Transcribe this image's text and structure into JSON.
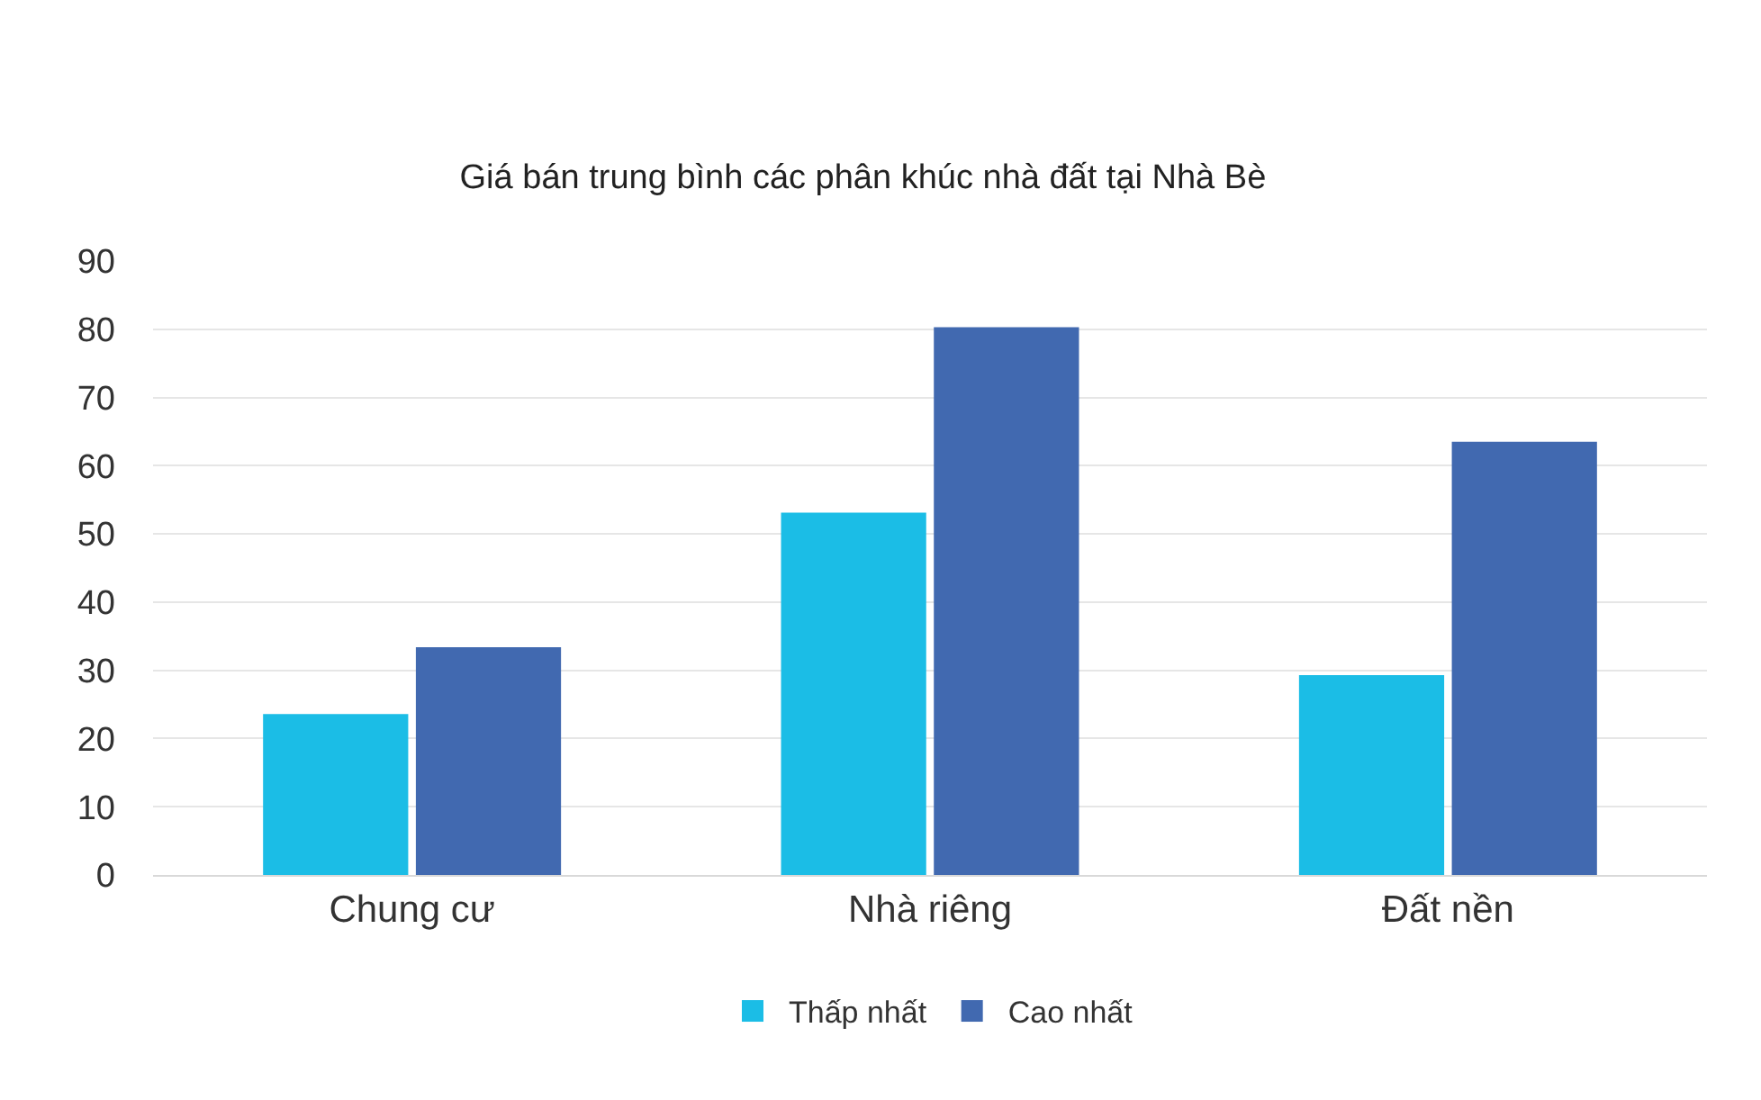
{
  "chart_data": {
    "type": "bar",
    "title": "Giá bán trung bình các phân khúc nhà đất tại Nhà Bè",
    "categories": [
      "Chung cư",
      "Nhà riêng",
      "Đất nền"
    ],
    "series": [
      {
        "name": "Thấp nhất",
        "color": "#1bbde6",
        "values": [
          23.6,
          53.1,
          29.3
        ]
      },
      {
        "name": "Cao nhất",
        "color": "#4169b0",
        "values": [
          33.4,
          80.3,
          63.5
        ]
      }
    ],
    "ylim": [
      0,
      90
    ],
    "yticks": [
      0,
      10,
      20,
      30,
      40,
      50,
      60,
      70,
      80,
      90
    ],
    "grid": "y",
    "legend": "bottom"
  }
}
